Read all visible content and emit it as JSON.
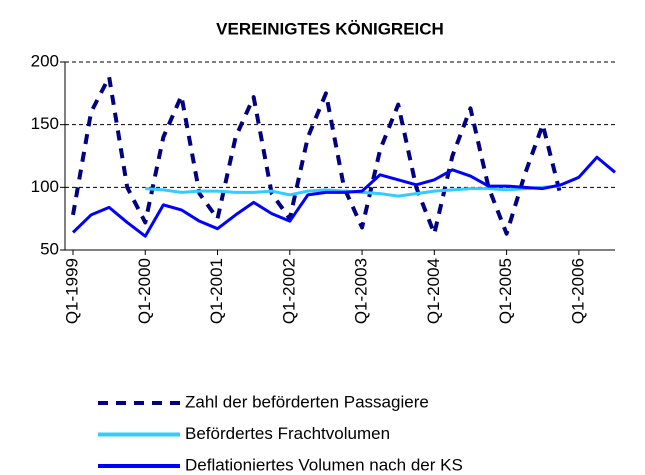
{
  "chart_data": {
    "type": "line",
    "title": "VEREINIGTES KÖNIGREICH",
    "categories": [
      "Q1-1999",
      null,
      null,
      null,
      "Q1-2000",
      null,
      null,
      null,
      "Q1-2001",
      null,
      null,
      null,
      "Q1-2002",
      null,
      null,
      null,
      "Q1-2003",
      null,
      null,
      null,
      "Q1-2004",
      null,
      null,
      null,
      "Q1-2005",
      null,
      null,
      null,
      "Q1-2006",
      null,
      null
    ],
    "series": [
      {
        "name": "Zahl der beförderten Passagiere",
        "color": "#000080",
        "style": "dashed",
        "values": [
          78,
          160,
          188,
          100,
          72,
          140,
          173,
          95,
          75,
          140,
          172,
          95,
          75,
          140,
          175,
          100,
          68,
          130,
          166,
          100,
          63,
          125,
          163,
          100,
          63,
          110,
          150,
          93,
          null,
          null,
          null
        ]
      },
      {
        "name": "Befördertes Frachtvolumen",
        "color": "#33ccff",
        "style": "solid",
        "values": [
          null,
          null,
          null,
          null,
          99,
          98,
          96,
          97,
          97,
          96,
          96,
          97,
          94,
          97,
          98,
          97,
          96,
          95,
          93,
          95,
          97,
          98,
          99,
          99,
          98,
          99,
          100,
          101,
          null,
          null,
          null
        ]
      },
      {
        "name": "Deflationiertes Volumen nach der KS",
        "color": "#0000ff",
        "style": "solid",
        "values": [
          64,
          78,
          84,
          72,
          61,
          86,
          82,
          73,
          67,
          78,
          88,
          79,
          73,
          94,
          96,
          96,
          97,
          110,
          106,
          102,
          106,
          114,
          109,
          101,
          101,
          100,
          99,
          102,
          108,
          124,
          112
        ]
      }
    ],
    "ylim": [
      50,
      200
    ],
    "yticks": [
      50,
      100,
      150,
      200
    ],
    "grid": true,
    "legend": "bottom"
  }
}
